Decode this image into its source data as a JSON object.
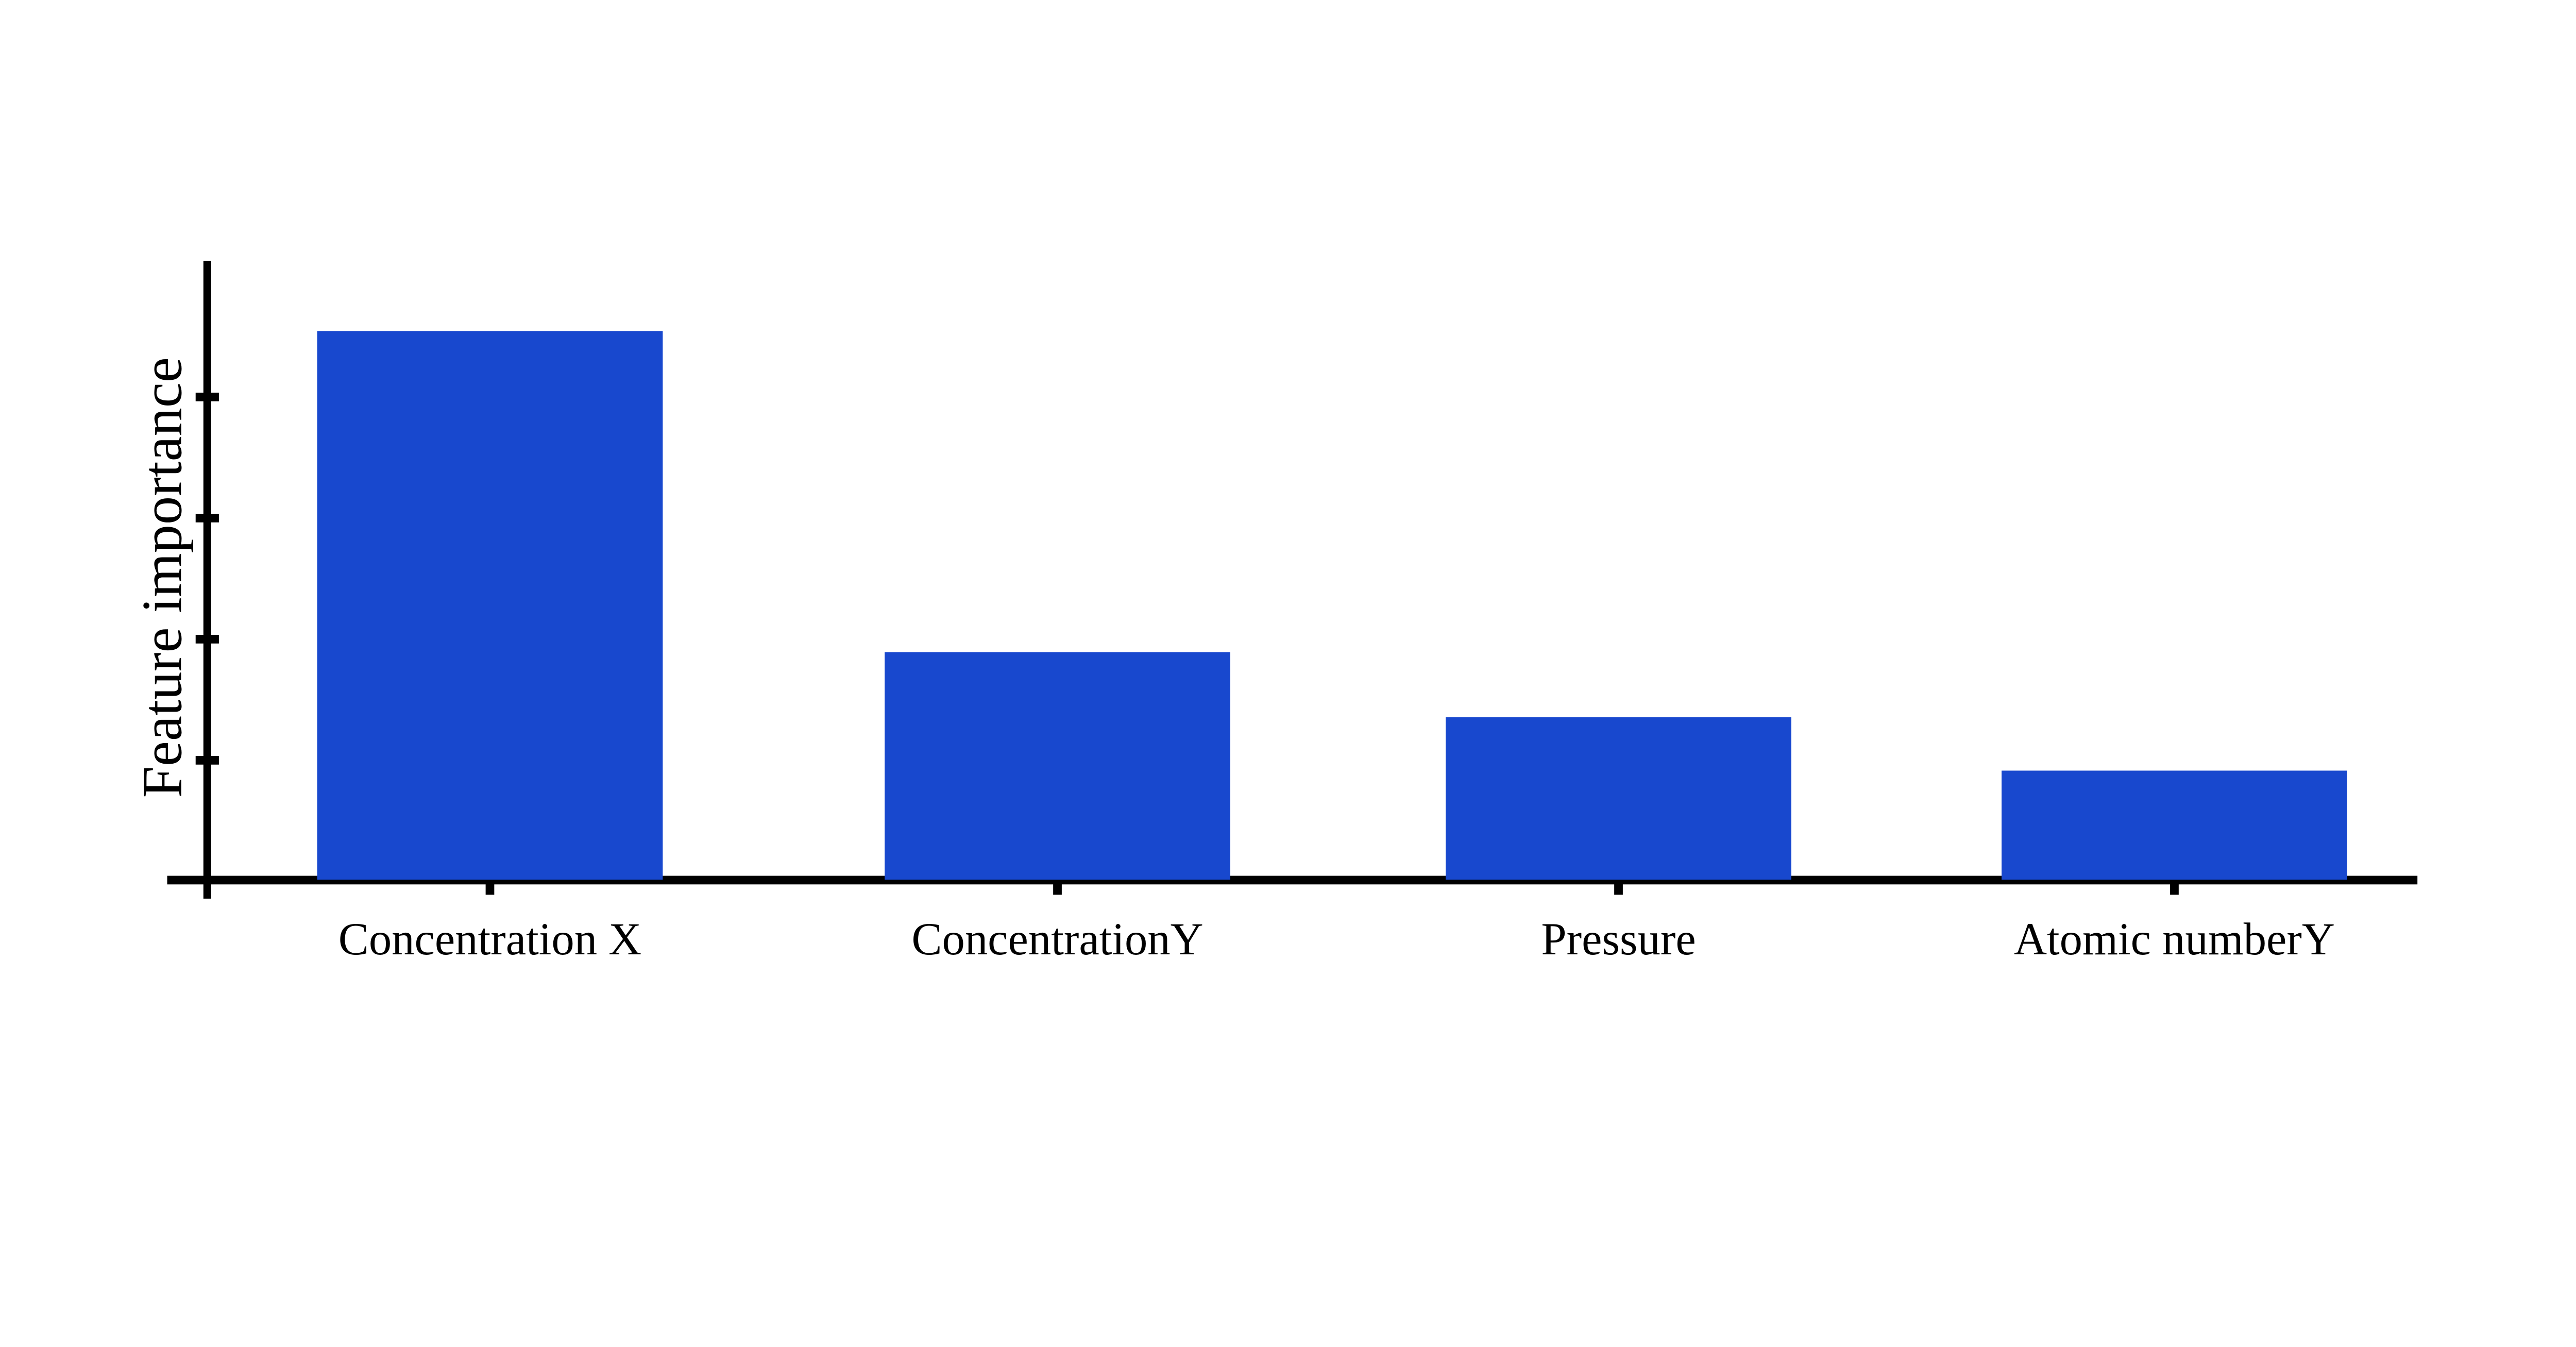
{
  "page": {
    "background_color": "#FFFFFF",
    "text_color": "#000000"
  },
  "chart_data": {
    "type": "bar",
    "title": "",
    "categories": [
      "Concentration X",
      "ConcentrationY",
      "Pressure",
      "Atomic numberY"
    ],
    "values": [
      4.53,
      1.88,
      1.34,
      0.9
    ],
    "xlabel": "",
    "ylabel": "Feature importance",
    "ylim": [
      0,
      5.09
    ],
    "yticks": [
      1,
      2,
      3,
      4
    ],
    "y_tick_labels_visible": false,
    "x_tick_marks_visible": true,
    "grid": false,
    "legend_position": "none",
    "bar_color": "#1848CE",
    "axis_color": "#000000"
  }
}
